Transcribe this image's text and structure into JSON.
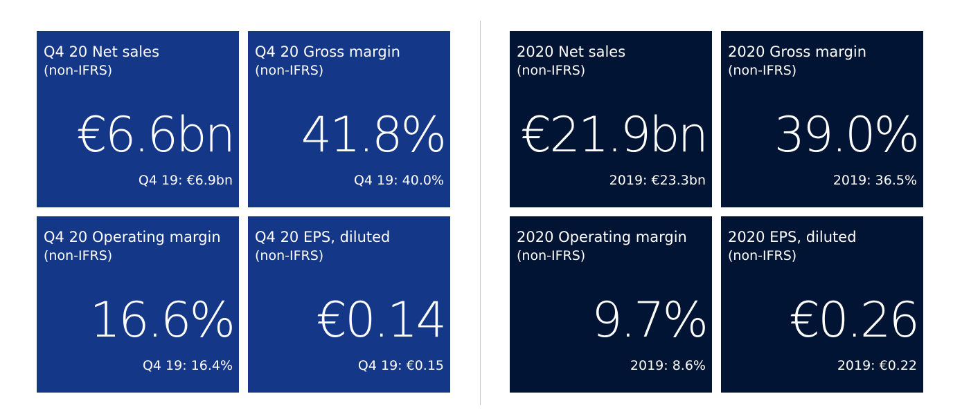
{
  "q4_tiles": [
    {
      "title": "Q4 20 Net sales",
      "subtitle": "(non-IFRS)",
      "value": "€6.6bn",
      "prior": "Q4 19: €6.9bn"
    },
    {
      "title": "Q4 20 Gross margin",
      "subtitle": "(non-IFRS)",
      "value": "41.8%",
      "prior": "Q4 19: 40.0%"
    },
    {
      "title": "Q4 20 Operating margin",
      "subtitle": "(non-IFRS)",
      "value": "16.6%",
      "prior": "Q4 19: 16.4%"
    },
    {
      "title": "Q4 20 EPS, diluted",
      "subtitle": "(non-IFRS)",
      "value": "€0.14",
      "prior": "Q4 19: €0.15"
    }
  ],
  "fy_tiles": [
    {
      "title": "2020 Net sales",
      "subtitle": "(non-IFRS)",
      "value": "€21.9bn",
      "prior": "2019: €23.3bn"
    },
    {
      "title": "2020 Gross margin",
      "subtitle": "(non-IFRS)",
      "value": "39.0%",
      "prior": "2019: 36.5%"
    },
    {
      "title": "2020 Operating margin",
      "subtitle": "(non-IFRS)",
      "value": "9.7%",
      "prior": "2019: 8.6%"
    },
    {
      "title": "2020 EPS, diluted",
      "subtitle": "(non-IFRS)",
      "value": "€0.26",
      "prior": "2019: €0.22"
    }
  ],
  "colors": {
    "q4_tile_bg": "#153788",
    "fy_tile_bg": "#021433",
    "text": "#ffffff",
    "divider": "#c8c8c8"
  }
}
